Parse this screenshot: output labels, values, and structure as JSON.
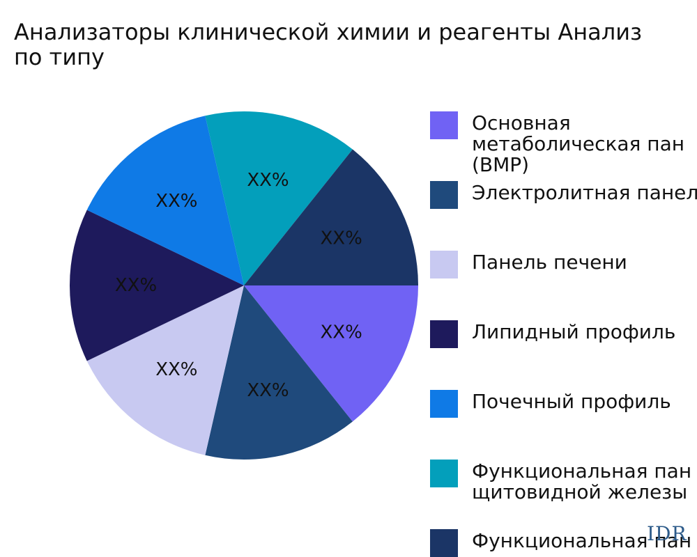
{
  "title_lines": [
    "Анализаторы клинической химии и реагенты Анализ",
    "по типу"
  ],
  "chart_data": {
    "type": "pie",
    "title": "Анализаторы клинической химии и реагенты Анализ по типу",
    "legend_position": "right",
    "start_angle_deg": 0,
    "direction": "clockwise",
    "slices": [
      {
        "label_lines": [
          "Основная",
          "метаболическая пан",
          "(BMP)"
        ],
        "value": 14.29,
        "display": "XX%",
        "color": "#7062f4"
      },
      {
        "label_lines": [
          "Электролитная панел"
        ],
        "value": 14.29,
        "display": "XX%",
        "color": "#1f4a7c"
      },
      {
        "label_lines": [
          "Панель печени"
        ],
        "value": 14.29,
        "display": "XX%",
        "color": "#c8c9f1"
      },
      {
        "label_lines": [
          "Липидный профиль"
        ],
        "value": 14.29,
        "display": "XX%",
        "color": "#1e1a5c"
      },
      {
        "label_lines": [
          "Почечный профиль"
        ],
        "value": 14.29,
        "display": "XX%",
        "color": "#0f7ae6"
      },
      {
        "label_lines": [
          "Функциональная пан",
          "щитовидной железы"
        ],
        "value": 14.29,
        "display": "XX%",
        "color": "#039fbb"
      },
      {
        "label_lines": [
          "Функциональная пан"
        ],
        "value": 14.29,
        "display": "XX%",
        "color": "#1b3566"
      }
    ]
  },
  "watermark": "IDR"
}
